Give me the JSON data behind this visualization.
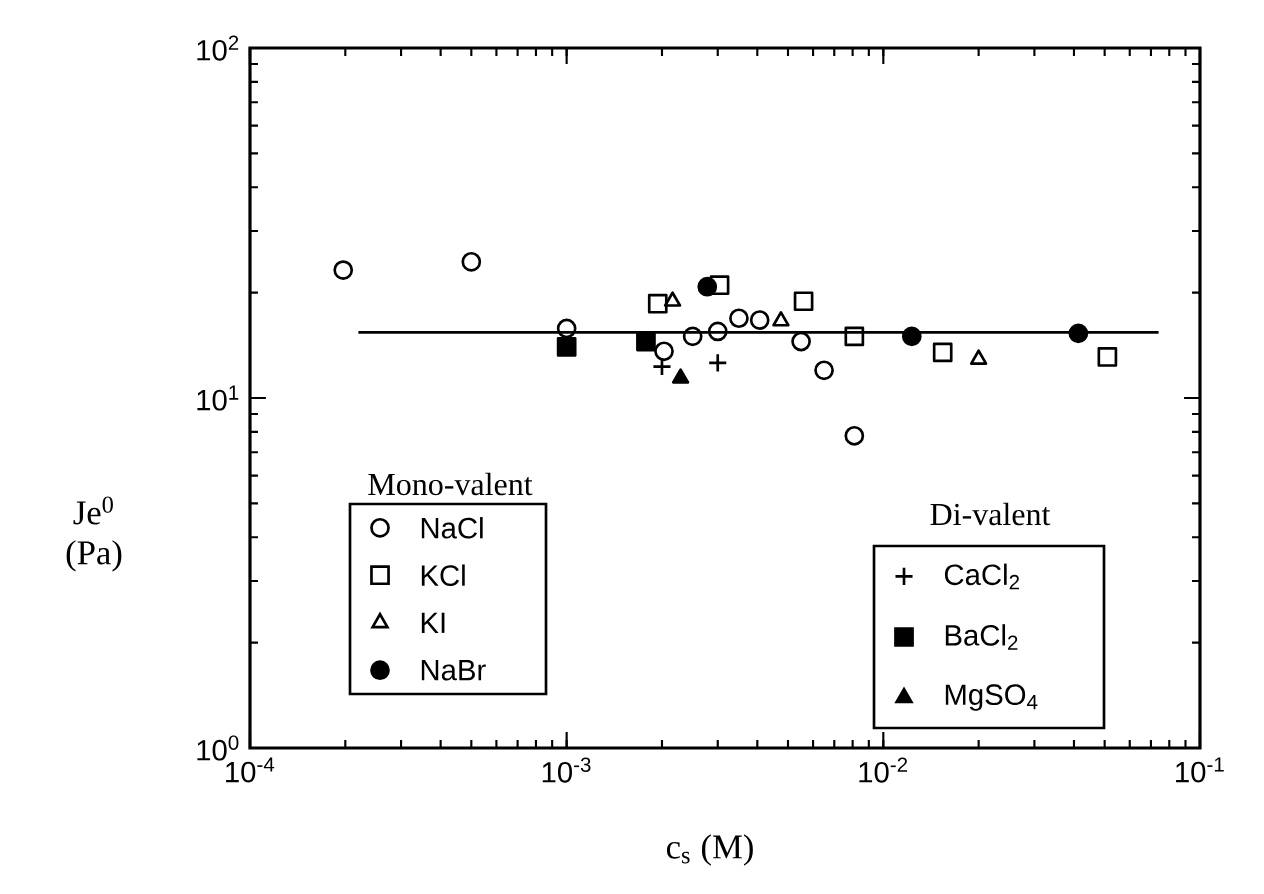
{
  "chart_data": {
    "type": "scatter",
    "xlabel": "c$_{s}$ (M)",
    "ylabel": "Je$^{0}$ (Pa)",
    "log": "xy",
    "xlim": [
      0.0001,
      0.1
    ],
    "ylim": [
      1,
      100
    ],
    "xticks": [
      {
        "value": 0.0001,
        "label": "10$^{-4}$"
      },
      {
        "value": 0.001,
        "label": "10$^{-3}$"
      },
      {
        "value": 0.01,
        "label": "10$^{-2}$"
      },
      {
        "value": 0.1,
        "label": "10$^{-1}$"
      }
    ],
    "yticks": [
      {
        "value": 1,
        "label": "10$^{0}$"
      },
      {
        "value": 10,
        "label": "10$^{1}$"
      },
      {
        "value": 100,
        "label": "10$^{2}$"
      }
    ],
    "legend": "bottom",
    "annotations": [
      "Mono-valent",
      "Di-valent"
    ],
    "series": [
      {
        "name": "NaCl",
        "color": "#000000",
        "marker": "circle",
        "x": [
          0.000197,
          0.0005,
          0.001,
          0.00203,
          0.0025,
          0.003,
          0.0035,
          0.00407,
          0.0055,
          0.0065,
          0.0081
        ],
        "values": [
          23.2,
          24.5,
          15.8,
          13.6,
          15.0,
          15.5,
          16.9,
          16.7,
          14.5,
          12.0,
          7.8
        ]
      },
      {
        "name": "KCl",
        "color": "#000000",
        "marker": "square",
        "x": [
          0.00194,
          0.00304,
          0.0056,
          0.0081,
          0.0154,
          0.051
        ],
        "values": [
          18.6,
          21.0,
          18.9,
          15.0,
          13.5,
          13.1
        ]
      },
      {
        "name": "KI",
        "color": "#000000",
        "marker": "triangle",
        "x": [
          0.00216,
          0.00475,
          0.02
        ],
        "values": [
          18.9,
          16.6,
          12.9
        ]
      },
      {
        "name": "NaBr",
        "color": "#000000",
        "marker": "circle",
        "x": [
          0.00278,
          0.0123,
          0.0413
        ],
        "values": [
          20.8,
          15.0,
          15.3
        ]
      },
      {
        "name": "CaCl$_{2}$",
        "color": "#000000",
        "marker": "cross",
        "x": [
          0.002,
          0.003
        ],
        "values": [
          12.3,
          12.6
        ]
      },
      {
        "name": "BaCl$_{2}$",
        "color": "#000000",
        "marker": "square",
        "x": [
          0.001,
          0.00178
        ],
        "values": [
          14.0,
          14.5
        ]
      },
      {
        "name": "MgSO$_{4}$",
        "color": "#000000",
        "marker": "triangle",
        "x": [
          0.00229
        ],
        "values": [
          11.4
        ]
      },
      {
        "type": "line",
        "color": "#000000",
        "marker": "none",
        "line_style": "solid",
        "x": [
          0.00022,
          0.074
        ],
        "values": [
          15.4,
          15.4
        ]
      }
    ]
  }
}
